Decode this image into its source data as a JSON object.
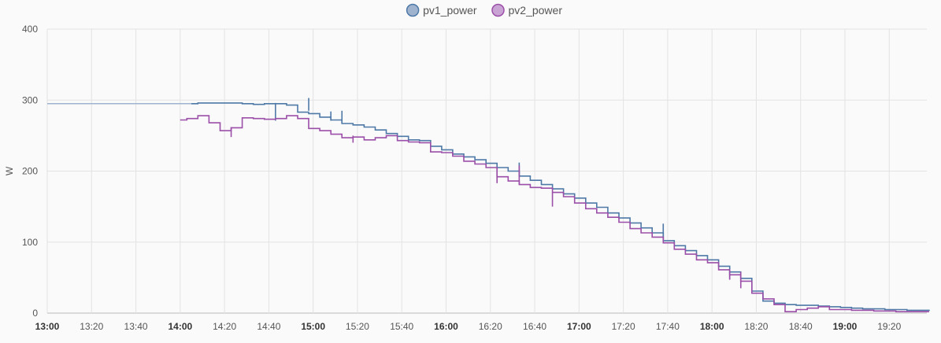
{
  "chart_data": {
    "type": "line",
    "step": true,
    "ylabel": "W",
    "ylim": [
      0,
      400
    ],
    "yticks": [
      "0",
      "100",
      "200",
      "300",
      "400"
    ],
    "xlim": [
      "13:00",
      "19:38"
    ],
    "xticks": [
      {
        "label": "13:00",
        "major": true
      },
      {
        "label": "13:20",
        "major": false
      },
      {
        "label": "13:40",
        "major": false
      },
      {
        "label": "14:00",
        "major": true
      },
      {
        "label": "14:20",
        "major": false
      },
      {
        "label": "14:40",
        "major": false
      },
      {
        "label": "15:00",
        "major": true
      },
      {
        "label": "15:20",
        "major": false
      },
      {
        "label": "15:40",
        "major": false
      },
      {
        "label": "16:00",
        "major": true
      },
      {
        "label": "16:20",
        "major": false
      },
      {
        "label": "16:40",
        "major": false
      },
      {
        "label": "17:00",
        "major": true
      },
      {
        "label": "17:20",
        "major": false
      },
      {
        "label": "17:40",
        "major": false
      },
      {
        "label": "18:00",
        "major": true
      },
      {
        "label": "18:20",
        "major": false
      },
      {
        "label": "18:40",
        "major": false
      },
      {
        "label": "19:00",
        "major": true
      },
      {
        "label": "19:20",
        "major": false
      }
    ],
    "grid": true,
    "legend_position": "top-center",
    "series": [
      {
        "name": "pv1_power",
        "color": "#4e79a7",
        "fill": "#9fb3cf",
        "history": {
          "from": "13:00",
          "to": "14:05",
          "value": 295,
          "color": "#9fb3cf"
        },
        "points": [
          [
            "14:05",
            295
          ],
          [
            "14:08",
            296
          ],
          [
            "14:13",
            296
          ],
          [
            "14:18",
            296
          ],
          [
            "14:23",
            296
          ],
          [
            "14:28",
            295
          ],
          [
            "14:33",
            294
          ],
          [
            "14:38",
            295
          ],
          [
            "14:43",
            295
          ],
          [
            "14:48",
            293
          ],
          [
            "14:53",
            283
          ],
          [
            "14:58",
            281
          ],
          [
            "15:03",
            276
          ],
          [
            "15:08",
            272
          ],
          [
            "15:13",
            267
          ],
          [
            "15:18",
            265
          ],
          [
            "15:23",
            262
          ],
          [
            "15:28",
            258
          ],
          [
            "15:33",
            253
          ],
          [
            "15:38",
            249
          ],
          [
            "15:43",
            244
          ],
          [
            "15:48",
            243
          ],
          [
            "15:53",
            235
          ],
          [
            "15:58",
            230
          ],
          [
            "16:03",
            224
          ],
          [
            "16:08",
            220
          ],
          [
            "16:13",
            216
          ],
          [
            "16:18",
            211
          ],
          [
            "16:23",
            205
          ],
          [
            "16:28",
            200
          ],
          [
            "16:33",
            193
          ],
          [
            "16:38",
            187
          ],
          [
            "16:43",
            181
          ],
          [
            "16:48",
            175
          ],
          [
            "16:53",
            168
          ],
          [
            "16:58",
            162
          ],
          [
            "17:03",
            155
          ],
          [
            "17:08",
            149
          ],
          [
            "17:13",
            141
          ],
          [
            "17:18",
            134
          ],
          [
            "17:23",
            127
          ],
          [
            "17:28",
            120
          ],
          [
            "17:33",
            113
          ],
          [
            "17:38",
            102
          ],
          [
            "17:43",
            95
          ],
          [
            "17:48",
            88
          ],
          [
            "17:53",
            81
          ],
          [
            "17:58",
            75
          ],
          [
            "18:03",
            66
          ],
          [
            "18:08",
            58
          ],
          [
            "18:13",
            49
          ],
          [
            "18:18",
            31
          ],
          [
            "18:23",
            17
          ],
          [
            "18:28",
            14
          ],
          [
            "18:33",
            12
          ],
          [
            "18:38",
            11
          ],
          [
            "18:43",
            11
          ],
          [
            "18:48",
            10
          ],
          [
            "18:53",
            9
          ],
          [
            "18:58",
            8
          ],
          [
            "19:03",
            7
          ],
          [
            "19:08",
            6
          ],
          [
            "19:13",
            6
          ],
          [
            "19:18",
            5
          ],
          [
            "19:23",
            5
          ],
          [
            "19:28",
            4
          ],
          [
            "19:33",
            4
          ],
          [
            "19:38",
            3
          ]
        ],
        "spikes": [
          [
            "14:43",
            271,
            296
          ],
          [
            "14:58",
            285,
            303
          ],
          [
            "15:08",
            271,
            284
          ],
          [
            "15:13",
            270,
            285
          ],
          [
            "16:33",
            193,
            212
          ],
          [
            "17:38",
            102,
            126
          ],
          [
            "18:08",
            48,
            63
          ]
        ]
      },
      {
        "name": "pv2_power",
        "color": "#9b4fa8",
        "fill": "#c9a3d4",
        "points": [
          [
            "14:00",
            272
          ],
          [
            "14:03",
            274
          ],
          [
            "14:08",
            278
          ],
          [
            "14:13",
            268
          ],
          [
            "14:18",
            257
          ],
          [
            "14:23",
            261
          ],
          [
            "14:28",
            275
          ],
          [
            "14:33",
            274
          ],
          [
            "14:38",
            273
          ],
          [
            "14:43",
            274
          ],
          [
            "14:48",
            278
          ],
          [
            "14:53",
            274
          ],
          [
            "14:58",
            260
          ],
          [
            "15:03",
            257
          ],
          [
            "15:08",
            252
          ],
          [
            "15:13",
            247
          ],
          [
            "15:18",
            248
          ],
          [
            "15:23",
            244
          ],
          [
            "15:28",
            247
          ],
          [
            "15:33",
            250
          ],
          [
            "15:38",
            243
          ],
          [
            "15:43",
            241
          ],
          [
            "15:48",
            240
          ],
          [
            "15:53",
            227
          ],
          [
            "15:58",
            226
          ],
          [
            "16:03",
            221
          ],
          [
            "16:08",
            214
          ],
          [
            "16:13",
            210
          ],
          [
            "16:18",
            205
          ],
          [
            "16:23",
            192
          ],
          [
            "16:28",
            186
          ],
          [
            "16:33",
            181
          ],
          [
            "16:38",
            177
          ],
          [
            "16:43",
            176
          ],
          [
            "16:48",
            170
          ],
          [
            "16:53",
            164
          ],
          [
            "16:58",
            155
          ],
          [
            "17:03",
            147
          ],
          [
            "17:08",
            141
          ],
          [
            "17:13",
            135
          ],
          [
            "17:18",
            128
          ],
          [
            "17:23",
            119
          ],
          [
            "17:28",
            113
          ],
          [
            "17:33",
            107
          ],
          [
            "17:38",
            99
          ],
          [
            "17:43",
            90
          ],
          [
            "17:48",
            83
          ],
          [
            "17:53",
            75
          ],
          [
            "17:58",
            71
          ],
          [
            "18:03",
            61
          ],
          [
            "18:08",
            54
          ],
          [
            "18:13",
            45
          ],
          [
            "18:18",
            28
          ],
          [
            "18:23",
            20
          ],
          [
            "18:28",
            12
          ],
          [
            "18:33",
            2
          ],
          [
            "18:38",
            5
          ],
          [
            "18:43",
            7
          ],
          [
            "18:48",
            9
          ],
          [
            "18:53",
            5
          ],
          [
            "18:58",
            5
          ],
          [
            "19:03",
            4
          ],
          [
            "19:08",
            4
          ],
          [
            "19:13",
            3
          ],
          [
            "19:18",
            3
          ],
          [
            "19:23",
            2
          ],
          [
            "19:28",
            2
          ],
          [
            "19:33",
            2
          ],
          [
            "19:38",
            2
          ]
        ],
        "spikes": [
          [
            "14:23",
            248,
            262
          ],
          [
            "15:18",
            240,
            250
          ],
          [
            "16:23",
            183,
            204
          ],
          [
            "16:33",
            181,
            208
          ],
          [
            "16:48",
            150,
            170
          ],
          [
            "18:08",
            47,
            57
          ],
          [
            "18:13",
            35,
            58
          ]
        ]
      }
    ]
  }
}
